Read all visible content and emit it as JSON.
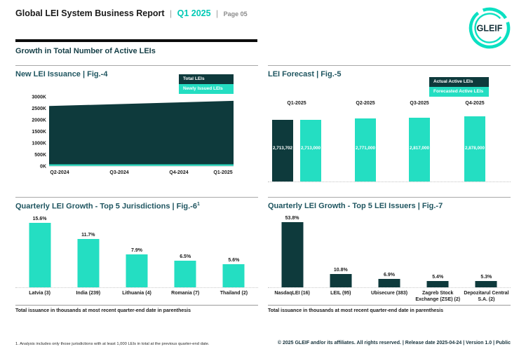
{
  "header": {
    "title": "Global LEI System Business Report",
    "pipe": "|",
    "period": "Q1 2025",
    "page_label": "Page 05",
    "logo_text": "GLEIF"
  },
  "section_title": "Growth in Total Number of Active LEIs",
  "colors": {
    "teal": "#24DEC2",
    "dark_teal": "#0E3A3C",
    "accent_text": "#00C9B5"
  },
  "chart_data": [
    {
      "id": "fig-4",
      "type": "area",
      "title": "New LEI Issuance | Fig.-4",
      "legend": [
        {
          "label": "Total LEIs",
          "color": "#0E3A3C"
        },
        {
          "label": "Newly Issued LEIs",
          "color": "#24DEC2"
        }
      ],
      "categories": [
        "Q2-2024",
        "Q3-2024",
        "Q4-2024",
        "Q1-2025"
      ],
      "series": [
        {
          "name": "Total LEIs",
          "values": [
            2600000,
            2670000,
            2745000,
            2820000
          ]
        },
        {
          "name": "Newly Issued LEIs",
          "values": [
            75000,
            75000,
            75000,
            75000
          ]
        }
      ],
      "ylim": [
        0,
        3000000
      ],
      "yticks": [
        "3000K",
        "2500K",
        "2000K",
        "1500K",
        "1000K",
        "500K",
        "0K"
      ],
      "legend_position": "top-right",
      "grid": false
    },
    {
      "id": "fig-5",
      "type": "bar",
      "title": "LEI Forecast | Fig.-5",
      "legend": [
        {
          "label": "Actual Active LEIs",
          "color": "#0E3A3C"
        },
        {
          "label": "Forecasted Active LEIs",
          "color": "#24DEC2"
        }
      ],
      "categories": [
        "Q1-2025",
        "Q2-2025",
        "Q3-2025",
        "Q4-2025"
      ],
      "bars": [
        {
          "category": "Q1-2025",
          "series": "Actual Active LEIs",
          "value": 2713702,
          "label": "2,713,702"
        },
        {
          "category": "Q1-2025",
          "series": "Forecasted Active LEIs",
          "value": 2713000,
          "label": "2,713,000"
        },
        {
          "category": "Q2-2025",
          "series": "Forecasted Active LEIs",
          "value": 2771000,
          "label": "2,771,000"
        },
        {
          "category": "Q3-2025",
          "series": "Forecasted Active LEIs",
          "value": 2817000,
          "label": "2,817,000"
        },
        {
          "category": "Q4-2025",
          "series": "Forecasted Active LEIs",
          "value": 2878000,
          "label": "2,878,000"
        }
      ],
      "ylim": [
        0,
        2878000
      ],
      "legend_position": "top-right"
    },
    {
      "id": "fig-6",
      "type": "bar",
      "title": "Quarterly LEI Growth - Top 5 Jurisdictions | Fig.-6",
      "title_superscript": "1",
      "categories": [
        "Latvia (3)",
        "India (239)",
        "Lithuania (4)",
        "Romania (7)",
        "Thailand (2)"
      ],
      "values": [
        15.6,
        11.7,
        7.9,
        6.5,
        5.6
      ],
      "labels": [
        "15.6%",
        "11.7%",
        "7.9%",
        "6.5%",
        "5.6%"
      ],
      "bar_color": "#24DEC2",
      "note": "Total issuance in thousands at most recent quarter-end date in parenthesis"
    },
    {
      "id": "fig-7",
      "type": "bar",
      "title": "Quarterly LEI Growth - Top 5 LEI Issuers | Fig.-7",
      "categories": [
        "NasdaqLEI (16)",
        "LEIL (95)",
        "Ubisecure (383)",
        "Zagreb Stock Exchange (ZSE) (2)",
        "Depozitarul Central S.A. (2)"
      ],
      "values": [
        53.8,
        10.8,
        6.9,
        5.4,
        5.3
      ],
      "labels": [
        "53.8%",
        "10.8%",
        "6.9%",
        "5.4%",
        "5.3%"
      ],
      "bar_color": "#0E3A3C",
      "note": "Total issuance in thousands at most recent quarter-end date in parenthesis"
    }
  ],
  "footnote": "1. Analysis includes only those jurisdictions with at least 1,000 LEIs in total at the previous quarter-end date.",
  "footer": "© 2025 GLEIF and/or its affiliates. All rights reserved. | Release date 2025-04-24 | Version 1.0 | Public"
}
